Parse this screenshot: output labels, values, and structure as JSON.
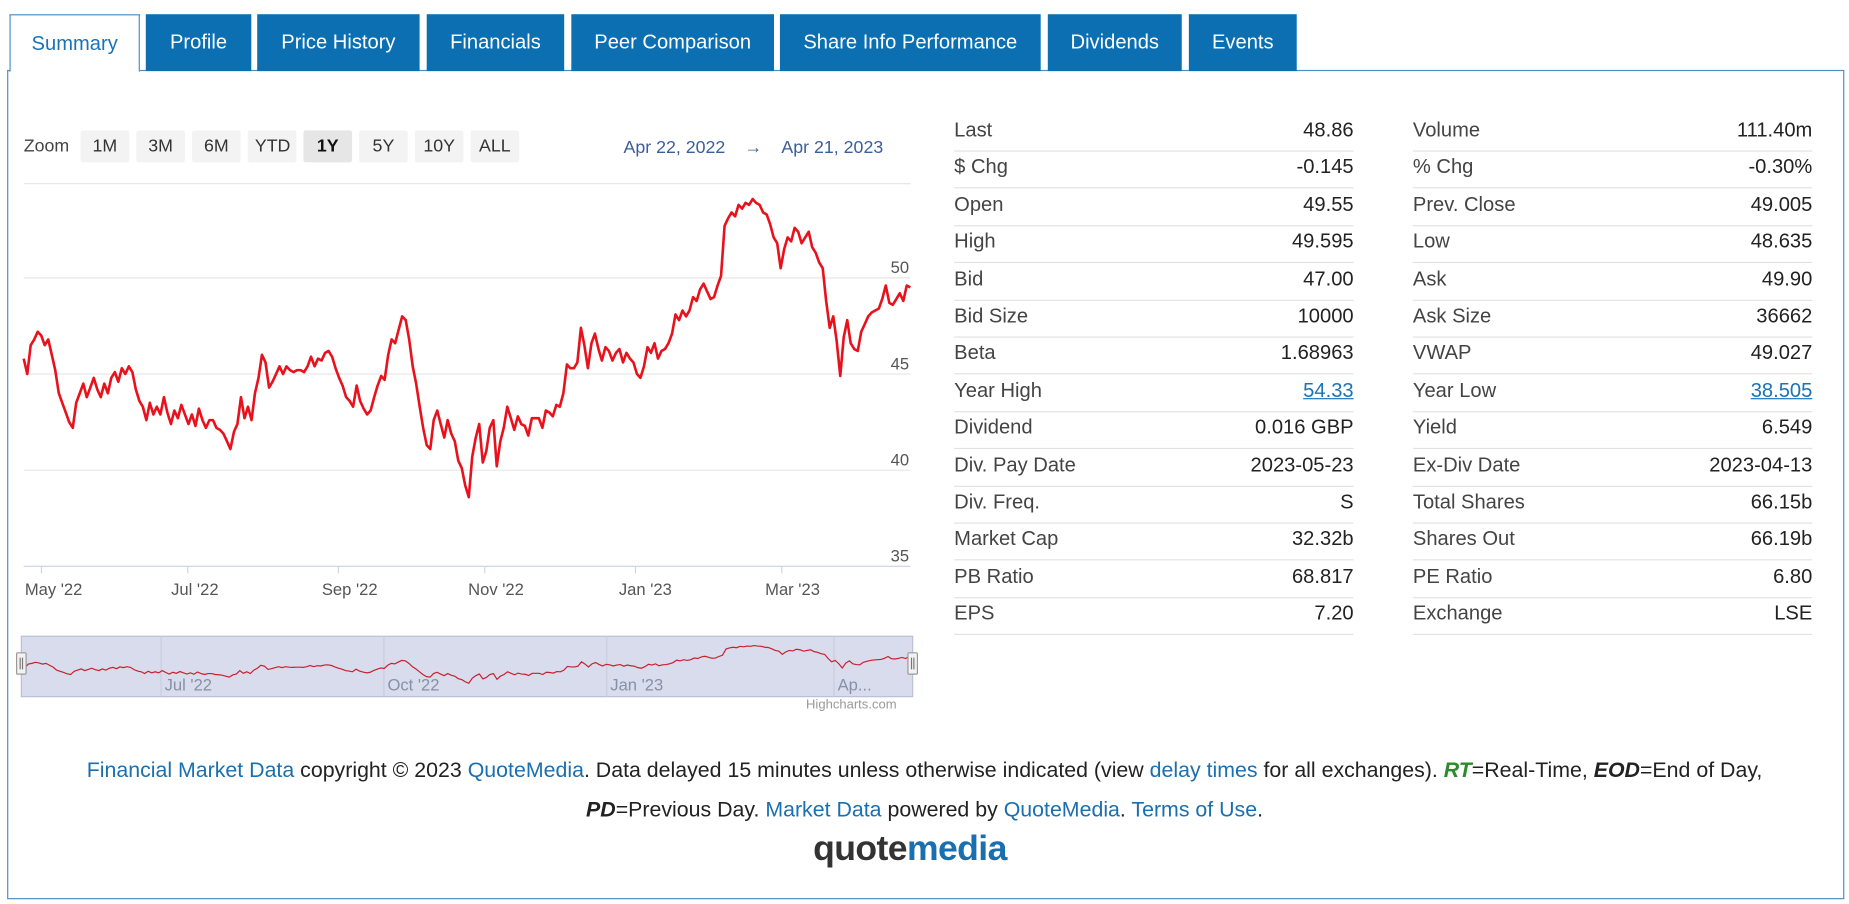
{
  "tabs": [
    {
      "label": "Summary",
      "active": true
    },
    {
      "label": "Profile"
    },
    {
      "label": "Price History"
    },
    {
      "label": "Financials"
    },
    {
      "label": "Peer Comparison"
    },
    {
      "label": "Share Info Performance"
    },
    {
      "label": "Dividends"
    },
    {
      "label": "Events"
    }
  ],
  "zoom": {
    "label": "Zoom",
    "buttons": [
      "1M",
      "3M",
      "6M",
      "YTD",
      "1Y",
      "5Y",
      "10Y",
      "ALL"
    ],
    "selected": "1Y"
  },
  "date_range": {
    "from": "Apr 22, 2022",
    "arrow": "→",
    "to": "Apr 21, 2023"
  },
  "chart_data": {
    "type": "line",
    "line_color": "#e8111c",
    "y_ticks": [
      35,
      40,
      45,
      50
    ],
    "ylim": [
      35,
      54.9
    ],
    "x_ticks": [
      "May '22",
      "Jul '22",
      "Sep '22",
      "Nov '22",
      "Jan '23",
      "Mar '23"
    ],
    "navigator_ticks": [
      "Jul '22",
      "Oct '22",
      "Jan '23",
      "Ap..."
    ],
    "credit": "Highcharts.com",
    "series": [
      {
        "values": [
          45.8,
          45,
          46.5,
          46.8,
          47.2,
          47,
          46.5,
          46.8,
          46,
          45.2,
          44,
          43.5,
          43,
          42.5,
          42.2,
          43.5,
          44,
          44.5,
          43.8,
          44.3,
          44.8,
          44.2,
          43.8,
          44.5,
          44,
          44.8,
          45.1,
          44.6,
          45.3,
          45,
          45.4,
          45.1,
          44.2,
          43.6,
          43.3,
          42.6,
          43.5,
          42.9,
          43.3,
          42.9,
          43.8,
          43,
          42.4,
          43.1,
          42.7,
          43.4,
          42.9,
          42.4,
          42.9,
          42.3,
          43.2,
          42.6,
          42.2,
          42.6,
          42.6,
          42.2,
          42.1,
          41.9,
          41.5,
          41.1,
          42,
          42.4,
          43.8,
          42.7,
          43.3,
          42.6,
          44,
          44.8,
          46,
          45.6,
          44.3,
          44.6,
          45,
          45.4,
          45,
          45.4,
          45.2,
          45.1,
          45.2,
          45.2,
          45.1,
          45.4,
          45.9,
          45.4,
          45.8,
          45.7,
          46.1,
          46.2,
          45.9,
          45.3,
          44.8,
          44.4,
          43.8,
          43.6,
          43.3,
          44.4,
          43.6,
          43.2,
          42.9,
          43.1,
          43.8,
          44.4,
          44.9,
          44.7,
          46,
          46.8,
          46.6,
          47.3,
          48,
          47.8,
          46.8,
          45.4,
          44.5,
          43.3,
          42.2,
          41.3,
          41.1,
          42.6,
          43.1,
          42.4,
          41.7,
          42.6,
          41.9,
          41.5,
          40.5,
          40.1,
          39.2,
          38.6,
          40.7,
          41.7,
          42.4,
          40.4,
          41,
          42.2,
          42.6,
          40.2,
          41.5,
          42.2,
          43.3,
          42.7,
          42.1,
          42.8,
          42.4,
          42.3,
          41.8,
          42.7,
          42.7,
          42.7,
          42.2,
          43.1,
          43,
          42.8,
          43.4,
          43.3,
          44,
          45.5,
          45.3,
          45.3,
          45.6,
          47.4,
          46.5,
          45.3,
          46.6,
          47.1,
          46.3,
          45.7,
          46.4,
          46.2,
          45.7,
          46.1,
          46.3,
          45.6,
          46.1,
          45.8,
          45.6,
          45,
          44.8,
          45.4,
          46.4,
          46.1,
          46.6,
          45.8,
          46.2,
          46.3,
          46.6,
          47.1,
          48.1,
          47.8,
          48.3,
          48,
          48.3,
          49,
          48.8,
          49.4,
          49.7,
          49.3,
          48.9,
          49,
          49.6,
          50.1,
          52.7,
          53.1,
          53.4,
          53.2,
          53.8,
          53.6,
          53.9,
          53.8,
          54.1,
          53.9,
          53.8,
          53.4,
          53.3,
          52.8,
          52.1,
          51.8,
          50.5,
          51.5,
          52.1,
          51.9,
          52.6,
          52.4,
          51.8,
          52.1,
          52.4,
          51.6,
          51.3,
          50.8,
          50.5,
          48.8,
          47.4,
          48,
          46.7,
          44.9,
          46.9,
          47.8,
          46.6,
          46.3,
          46.2,
          47.2,
          47.6,
          48,
          48.2,
          48.3,
          48.4,
          48.9,
          49.6,
          48.7,
          48.6,
          48.9,
          49.2,
          48.8,
          49.6,
          49.5
        ]
      }
    ]
  },
  "quote": {
    "left": [
      {
        "label": "Last",
        "value": "48.86"
      },
      {
        "label": "$ Chg",
        "value": "-0.145"
      },
      {
        "label": "Open",
        "value": "49.55"
      },
      {
        "label": "High",
        "value": "49.595"
      },
      {
        "label": "Bid",
        "value": "47.00"
      },
      {
        "label": "Bid Size",
        "value": "10000"
      },
      {
        "label": "Beta",
        "value": "1.68963"
      },
      {
        "label": "Year High",
        "value": "54.33",
        "link": true
      },
      {
        "label": "Dividend",
        "value": "0.016 GBP"
      },
      {
        "label": "Div. Pay Date",
        "value": "2023-05-23"
      },
      {
        "label": "Div. Freq.",
        "value": "S"
      },
      {
        "label": "Market Cap",
        "value": "32.32b"
      },
      {
        "label": "PB Ratio",
        "value": "68.817"
      },
      {
        "label": "EPS",
        "value": "7.20"
      }
    ],
    "right": [
      {
        "label": "Volume",
        "value": "111.40m"
      },
      {
        "label": "% Chg",
        "value": "-0.30%"
      },
      {
        "label": "Prev. Close",
        "value": "49.005"
      },
      {
        "label": "Low",
        "value": "48.635"
      },
      {
        "label": "Ask",
        "value": "49.90"
      },
      {
        "label": "Ask Size",
        "value": "36662"
      },
      {
        "label": "VWAP",
        "value": "49.027"
      },
      {
        "label": "Year Low",
        "value": "38.505",
        "link": true
      },
      {
        "label": "Yield",
        "value": "6.549"
      },
      {
        "label": "Ex-Div Date",
        "value": "2023-04-13"
      },
      {
        "label": "Total Shares",
        "value": "66.15b"
      },
      {
        "label": "Shares Out",
        "value": "66.19b"
      },
      {
        "label": "PE Ratio",
        "value": "6.80"
      },
      {
        "label": "Exchange",
        "value": "LSE"
      }
    ]
  },
  "footer": {
    "link_fmd": "Financial Market Data",
    "t1": " copyright © 2023 ",
    "link_qm1": "QuoteMedia",
    "t2": ". Data delayed 15 minutes unless otherwise indicated (view ",
    "link_delay": "delay times",
    "t3": " for all exchanges). ",
    "rt": "RT",
    "t4": "=Real-Time, ",
    "eod": "EOD",
    "t5": "=End of Day,",
    "pd": "PD",
    "t6": "=Previous Day. ",
    "link_md": "Market Data",
    "t7": " powered by ",
    "link_qm2": "QuoteMedia",
    "t8": ". ",
    "link_terms": "Terms of Use",
    "t9": "."
  },
  "logo": {
    "part1": "quote",
    "part2": "media"
  }
}
